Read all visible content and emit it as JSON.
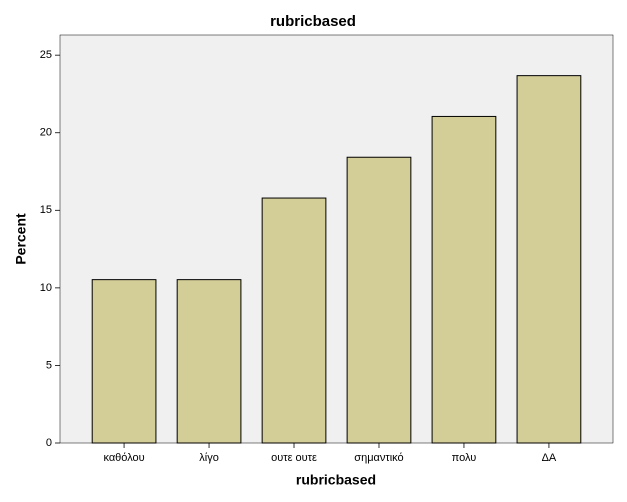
{
  "chart_data": {
    "type": "bar",
    "title": "rubricbased",
    "x_label": "rubricbased",
    "y_label": "Percent",
    "categories": [
      "καθόλου",
      "λίγο",
      "ουτε ουτε",
      "σημαντικό",
      "πολυ",
      "ΔΑ"
    ],
    "values": [
      10.53,
      10.53,
      15.79,
      18.42,
      21.05,
      23.68
    ],
    "color": "#d3ce97",
    "ylim": [
      0,
      26.3
    ],
    "yticks": [
      0,
      5,
      10,
      15,
      20,
      25
    ]
  }
}
